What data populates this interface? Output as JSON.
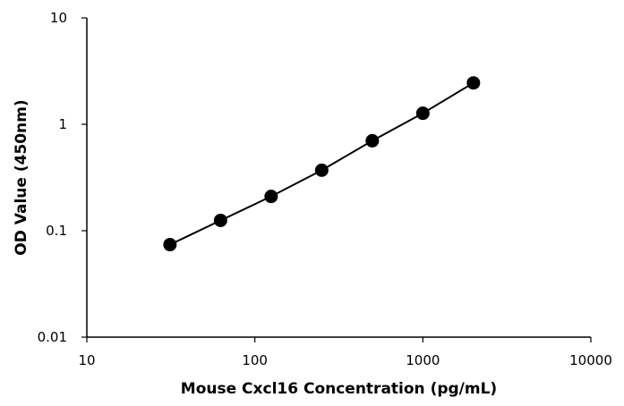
{
  "chart_data": {
    "type": "scatter",
    "x_scale": "log",
    "y_scale": "log",
    "xlabel": "Mouse Cxcl16 Concentration (pg/mL)",
    "ylabel": "OD Value (450nm)",
    "xlim": [
      10,
      10000
    ],
    "ylim": [
      0.01,
      10
    ],
    "x_ticks": [
      "10",
      "100",
      "1000",
      "10000"
    ],
    "y_ticks": [
      "0.01",
      "0.1",
      "1",
      "10"
    ],
    "x_tick_values": [
      10,
      100,
      1000,
      10000
    ],
    "y_tick_values": [
      0.01,
      0.1,
      1,
      10
    ],
    "grid": false,
    "series": [
      {
        "x": [
          31.25,
          62.5,
          125,
          250,
          500,
          1000,
          2000
        ],
        "y": [
          0.074,
          0.125,
          0.21,
          0.37,
          0.7,
          1.27,
          2.45
        ],
        "color": "#000000",
        "marker": "circle",
        "connected": true
      }
    ]
  }
}
